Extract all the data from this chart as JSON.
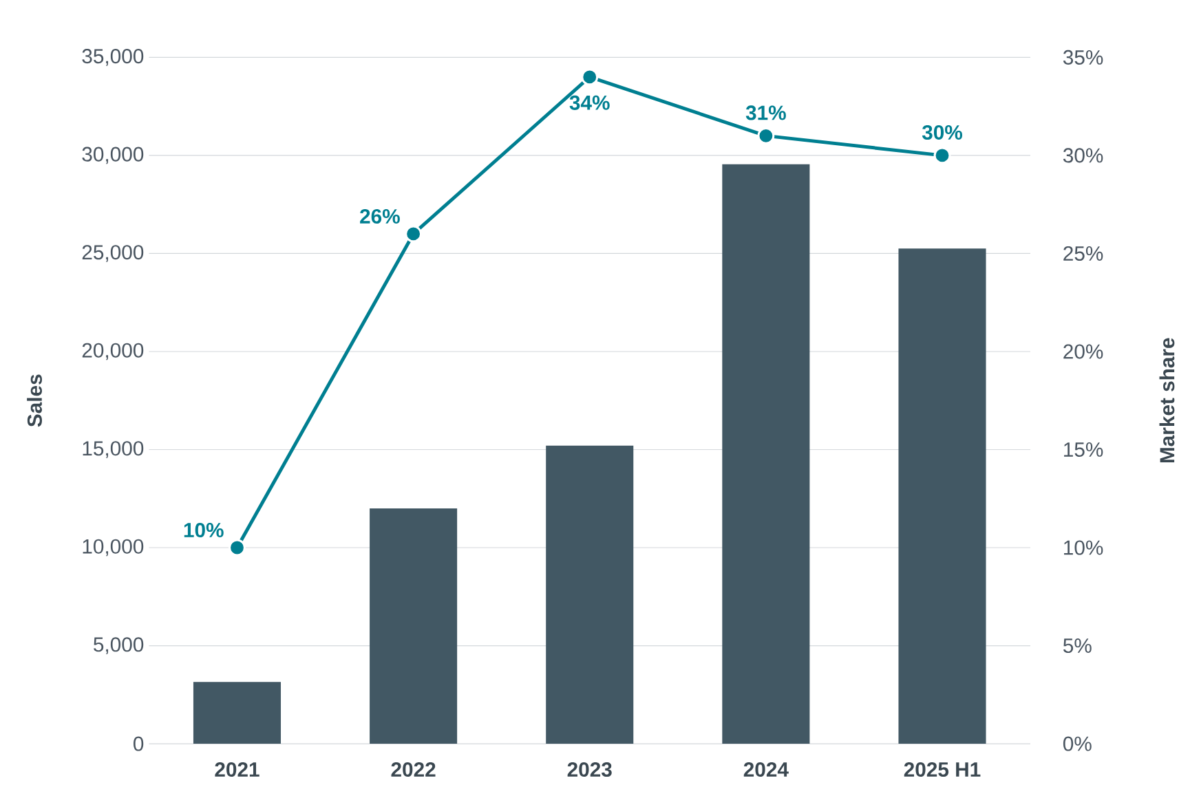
{
  "chart_data": {
    "type": "bar",
    "categories": [
      "2021",
      "2022",
      "2023",
      "2024",
      "2025 H1"
    ],
    "ylabel": "Sales",
    "y2label": "Market share",
    "grid": "y",
    "marker": "circle",
    "ylim": [
      0,
      35000
    ],
    "yticks": [
      0,
      {
        "value": 5000,
        "label": "5,000"
      },
      {
        "value": 10000,
        "label": "10,000"
      },
      {
        "value": 15000,
        "label": "15,000"
      },
      {
        "value": 20000,
        "label": "20,000"
      },
      {
        "value": 25000,
        "label": "25,000"
      },
      {
        "value": 30000,
        "label": "30,000"
      },
      {
        "value": 35000,
        "label": "35,000"
      }
    ],
    "y2lim": [
      0,
      35
    ],
    "y2ticks": [
      {
        "value": 0,
        "label": "0%"
      },
      {
        "value": 5,
        "label": "5%"
      },
      {
        "value": 10,
        "label": "10%"
      },
      {
        "value": 15,
        "label": "15%"
      },
      {
        "value": 20,
        "label": "20%"
      },
      {
        "value": 25,
        "label": "25%"
      },
      {
        "value": 30,
        "label": "30%"
      },
      {
        "value": 35,
        "label": "35%"
      }
    ],
    "series": [
      {
        "color": "#425864",
        "values": [
          3150,
          12000,
          15200,
          29550,
          25250
        ]
      },
      {
        "type": "line",
        "axis": "y2",
        "color": "#007f91",
        "values": [
          10,
          26,
          34,
          31,
          30
        ],
        "value_labels": [
          "10%",
          "26%",
          "34%",
          "31%",
          "30%"
        ]
      }
    ]
  }
}
